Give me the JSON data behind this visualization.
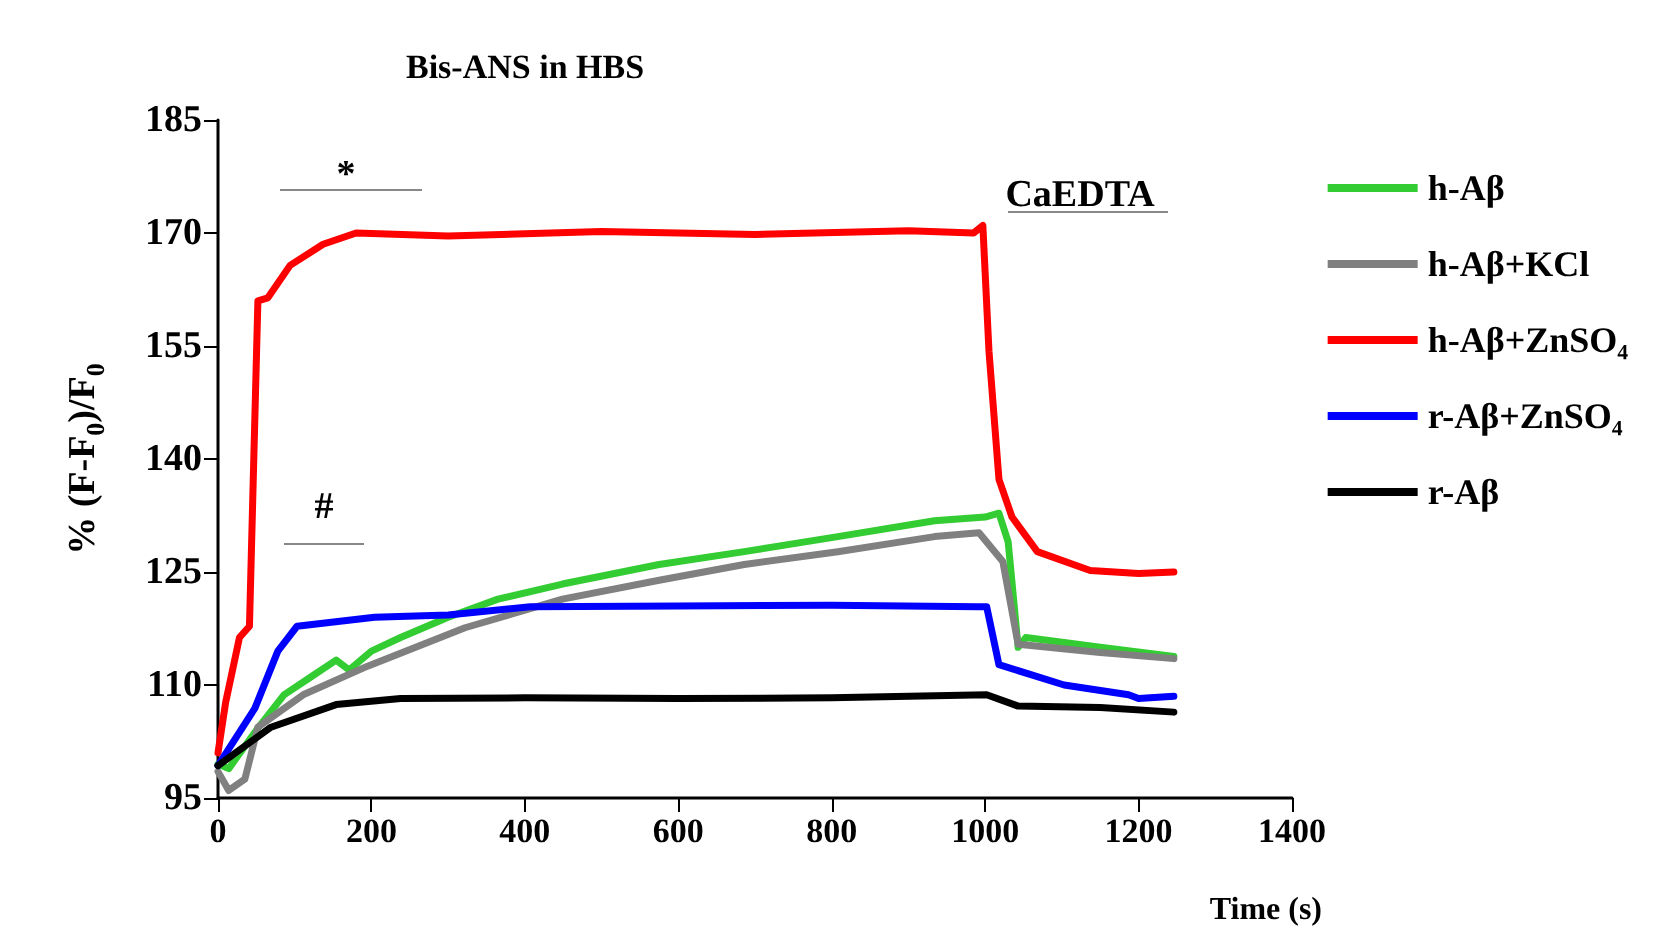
{
  "chart_data": {
    "type": "line",
    "title": "Bis-ANS in HBS",
    "xlabel": "Time (s)",
    "ylabel": "% (F-F$_{0}$)/F$_{0}$",
    "xlim": [
      0,
      1400
    ],
    "xticks": [
      0,
      200,
      400,
      600,
      800,
      1000,
      1200,
      1400
    ],
    "ylim": [
      95,
      185
    ],
    "yticks": [
      95,
      110,
      125,
      140,
      155,
      170,
      185
    ],
    "grid": false,
    "legend": "right",
    "marker": "none",
    "line_style": "solid",
    "annotations": [
      "*",
      "#",
      "CaEDTA"
    ],
    "series": [
      {
        "name": "h-Aβ",
        "color": "#33cc33",
        "x": [
          0,
          14,
          50,
          86,
          120,
          154,
          171,
          200,
          238,
          300,
          365,
          449,
          575,
          686,
          808,
          934,
          1000,
          1018,
          1030,
          1043,
          1053,
          1150,
          1246
        ],
        "values": [
          99.5,
          98.9,
          104,
          108.7,
          111,
          113.3,
          112,
          114.5,
          116.3,
          119,
          121.4,
          123.4,
          126,
          127.7,
          129.7,
          131.8,
          132.3,
          132.8,
          129,
          115,
          116.3,
          115,
          113.8
        ]
      },
      {
        "name": "h-Aβ+KCl",
        "color": "#808080",
        "x": [
          0,
          14,
          35,
          52,
          111,
          195,
          322,
          449,
          575,
          686,
          808,
          934,
          992,
          1023,
          1043,
          1150,
          1246
        ],
        "values": [
          98.5,
          96,
          97.5,
          104.4,
          108.7,
          112.5,
          117.6,
          121.4,
          123.9,
          126,
          127.7,
          129.7,
          130.2,
          126.4,
          115.4,
          114.3,
          113.5
        ]
      },
      {
        "name": "h-Aβ+ZnSO₄",
        "color": "#ff0000",
        "x": [
          0,
          10,
          28,
          41,
          52,
          65,
          94,
          137,
          180,
          300,
          500,
          700,
          900,
          985,
          997,
          1005,
          1018,
          1035,
          1068,
          1137,
          1200,
          1246
        ],
        "values": [
          101,
          107.7,
          116.3,
          117.8,
          161,
          161.4,
          165.7,
          168.5,
          170,
          169.6,
          170.2,
          169.8,
          170.3,
          170,
          171,
          154.3,
          137.3,
          132.3,
          127.7,
          125.2,
          124.8,
          125
        ]
      },
      {
        "name": "r-Aβ+ZnSO₄",
        "color": "#0000ff",
        "x": [
          0,
          48,
          78,
          103,
          204,
          300,
          407,
          600,
          800,
          990,
          1002,
          1018,
          1103,
          1187,
          1200,
          1246
        ],
        "values": [
          99.3,
          106.9,
          114.5,
          117.8,
          119,
          119.3,
          120.4,
          120.5,
          120.6,
          120.4,
          120.4,
          112.7,
          110,
          108.7,
          108.2,
          108.5
        ]
      },
      {
        "name": "r-Aβ",
        "color": "#000000",
        "x": [
          0,
          69,
          154,
          238,
          400,
          600,
          800,
          1002,
          1043,
          1150,
          1246
        ],
        "values": [
          99.3,
          104.4,
          107.4,
          108.2,
          108.3,
          108.2,
          108.3,
          108.7,
          107.2,
          107,
          106.4
        ]
      }
    ]
  }
}
